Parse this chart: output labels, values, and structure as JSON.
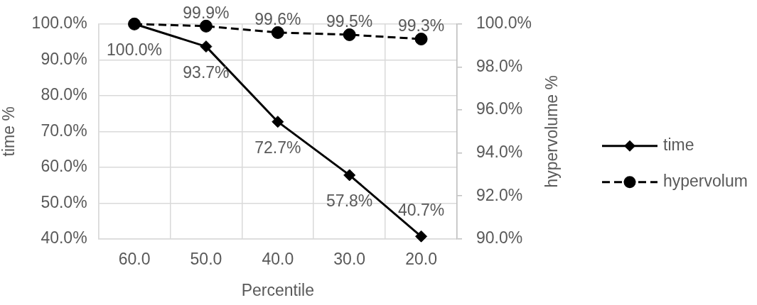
{
  "chart_data": {
    "type": "line",
    "categories": [
      "60.0",
      "50.0",
      "40.0",
      "30.0",
      "20.0"
    ],
    "xlabel": "Percentile",
    "ylabel": "time %",
    "y2label": "hypervolume %",
    "ylim": [
      40,
      100
    ],
    "yticks": [
      {
        "value": 40,
        "label": "40.0%"
      },
      {
        "value": 50,
        "label": "50.0%"
      },
      {
        "value": 60,
        "label": "60.0%"
      },
      {
        "value": 70,
        "label": "70.0%"
      },
      {
        "value": 80,
        "label": "80.0%"
      },
      {
        "value": 90,
        "label": "90.0%"
      },
      {
        "value": 100,
        "label": "100.0%"
      }
    ],
    "y2lim": [
      90,
      100
    ],
    "y2ticks": [
      {
        "value": 90,
        "label": "90.0%"
      },
      {
        "value": 92,
        "label": "92.0%"
      },
      {
        "value": 94,
        "label": "94.0%"
      },
      {
        "value": 96,
        "label": "96.0%"
      },
      {
        "value": 98,
        "label": "98.0%"
      },
      {
        "value": 100,
        "label": "100.0%"
      }
    ],
    "grid": true,
    "legend": "right",
    "series": [
      {
        "name": "time",
        "color": "#000000",
        "values": [
          100.0,
          93.7,
          72.7,
          57.8,
          40.7
        ],
        "marker": "diamond",
        "line_style": "solid",
        "value_labels": [
          "100.0%",
          "93.7%",
          "72.7%",
          "57.8%",
          "40.7%"
        ]
      },
      {
        "name": "hypervolum",
        "color": "#000000",
        "axis": "y2",
        "values": [
          100.0,
          99.9,
          99.6,
          99.5,
          99.3
        ],
        "marker": "circle",
        "line_style": "dashed",
        "value_labels": [
          null,
          "99.9%",
          "99.6%",
          "99.5%",
          "99.3%"
        ]
      }
    ]
  }
}
